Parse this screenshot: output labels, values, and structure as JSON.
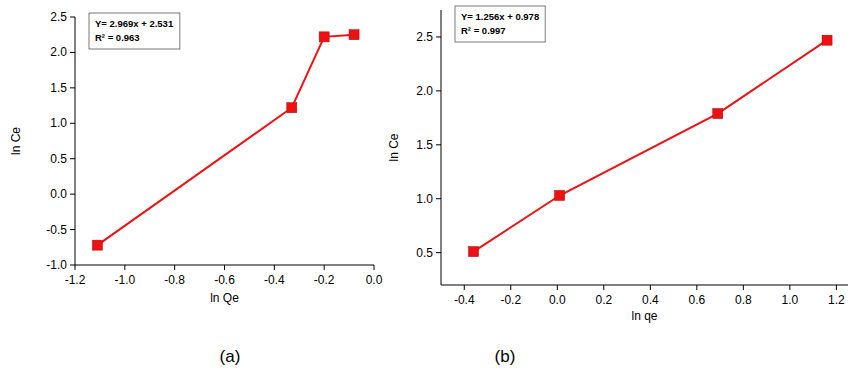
{
  "chart_data": [
    {
      "type": "line",
      "title": "(a)",
      "x_label": "ln Qe",
      "y_label": "ln Ce",
      "annotations": [
        "Y= 2.969x + 2.531",
        "R² = 0.963"
      ],
      "x": [
        -1.11,
        -0.33,
        -0.2,
        -0.08
      ],
      "values": [
        -0.72,
        1.22,
        2.22,
        2.25
      ],
      "color": "#ee1111",
      "marker": "square",
      "line_style": "solid",
      "xlim": [
        -1.2,
        0.0
      ],
      "xticks": [
        -1.2,
        {
          "value": -1.0,
          "label": "-1.0"
        },
        -0.8,
        -0.6,
        -0.4,
        -0.2,
        {
          "value": 0.0,
          "label": "0.0"
        }
      ],
      "ylim": [
        -1.0,
        2.5
      ],
      "yticks": [
        {
          "value": -1.0,
          "label": "-1.0"
        },
        -0.5,
        {
          "value": 0.0,
          "label": "0.0"
        },
        0.5,
        {
          "value": 1.0,
          "label": "1.0"
        },
        1.5,
        {
          "value": 2.0,
          "label": "2.0"
        },
        2.5
      ],
      "grid": false
    },
    {
      "type": "line",
      "title": "(b)",
      "x_label": "ln qe",
      "y_label": "ln Ce",
      "annotations": [
        "Y= 1.256x + 0.978",
        "R² = 0.997"
      ],
      "x": [
        -0.36,
        0.01,
        0.69,
        1.16
      ],
      "values": [
        0.51,
        1.03,
        1.79,
        2.47
      ],
      "color": "#ee1111",
      "marker": "square",
      "line_style": "solid",
      "xlim": [
        -0.5,
        1.25
      ],
      "xticks": [
        -0.4,
        -0.2,
        {
          "value": 0.0,
          "label": "0.0"
        },
        0.2,
        0.4,
        0.6,
        0.8,
        {
          "value": 1.0,
          "label": "1.0"
        },
        1.2
      ],
      "ylim": [
        0.2,
        2.75
      ],
      "yticks": [
        0.5,
        {
          "value": 1.0,
          "label": "1.0"
        },
        1.5,
        {
          "value": 2.0,
          "label": "2.0"
        },
        2.5
      ],
      "grid": false
    }
  ]
}
